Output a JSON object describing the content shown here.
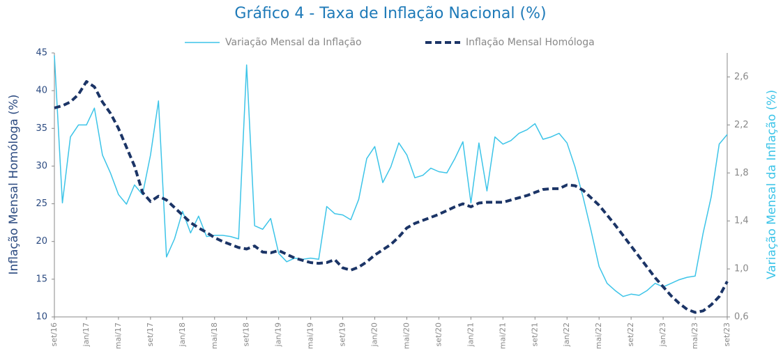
{
  "chart_data": {
    "type": "line",
    "title": "Gráfico 4 - Taxa de Inflação Nacional (%)",
    "ylabel": "Inflação Mensal Homóloga (%)",
    "y2label": "Variação Mensal da Inflação (%)",
    "categories": [
      "set/16",
      null,
      null,
      null,
      "jan/17",
      null,
      null,
      null,
      "mai/17",
      null,
      null,
      null,
      "set/17",
      null,
      null,
      null,
      "jan/18",
      null,
      null,
      null,
      "mai/18",
      null,
      null,
      null,
      "set/18",
      null,
      null,
      null,
      "jan/19",
      null,
      null,
      null,
      "mai/19",
      null,
      null,
      null,
      "set/19",
      null,
      null,
      null,
      "jan/20",
      null,
      null,
      null,
      "mai/20",
      null,
      null,
      null,
      "set/20",
      null,
      null,
      null,
      "jan/21",
      null,
      null,
      null,
      "mai/21",
      null,
      null,
      null,
      "set/21",
      null,
      null,
      null,
      "jan/22",
      null,
      null,
      null,
      "mai/22",
      null,
      null,
      null,
      "set/22",
      null,
      null,
      null,
      "jan/23",
      null,
      null,
      null,
      "mai/23",
      null,
      null,
      null,
      "set/23"
    ],
    "series": [
      {
        "name": "Variação Mensal da Inflação",
        "color": "#3cc4e8",
        "axis": "y2",
        "dashed": false,
        "values": [
          2.78,
          1.55,
          2.1,
          2.2,
          2.2,
          2.34,
          1.95,
          1.8,
          1.62,
          1.54,
          1.7,
          1.62,
          1.95,
          2.4,
          1.1,
          1.25,
          1.48,
          1.3,
          1.44,
          1.27,
          1.28,
          1.28,
          1.27,
          1.25,
          2.7,
          1.36,
          1.33,
          1.42,
          1.13,
          1.06,
          1.09,
          1.08,
          1.09,
          1.08,
          1.52,
          1.46,
          1.45,
          1.41,
          1.58,
          1.92,
          2.02,
          1.72,
          1.85,
          2.05,
          1.95,
          1.76,
          1.78,
          1.84,
          1.81,
          1.8,
          1.92,
          2.06,
          1.55,
          2.05,
          1.65,
          2.1,
          2.04,
          2.07,
          2.13,
          2.16,
          2.21,
          2.08,
          2.1,
          2.13,
          2.05,
          1.85,
          1.6,
          1.32,
          1.02,
          0.88,
          0.82,
          0.77,
          0.79,
          0.78,
          0.82,
          0.88,
          0.85,
          0.88,
          0.91,
          0.93,
          0.94,
          1.3,
          1.6,
          2.04,
          2.12
        ]
      },
      {
        "name": "Inflação Mensal Homóloga",
        "color": "#1b3466",
        "axis": "y",
        "dashed": true,
        "values": [
          37.7,
          38.0,
          38.5,
          39.5,
          41.2,
          40.5,
          38.5,
          37.0,
          35.0,
          32.5,
          30.0,
          26.5,
          25.3,
          26.0,
          25.5,
          24.5,
          23.5,
          22.5,
          21.8,
          21.2,
          20.5,
          20.0,
          19.6,
          19.2,
          19.0,
          19.4,
          18.6,
          18.5,
          18.8,
          18.3,
          17.8,
          17.5,
          17.2,
          17.1,
          17.2,
          17.6,
          16.5,
          16.2,
          16.6,
          17.3,
          18.2,
          18.9,
          19.6,
          20.6,
          21.8,
          22.4,
          22.8,
          23.2,
          23.6,
          24.1,
          24.6,
          25.0,
          24.6,
          25.1,
          25.2,
          25.2,
          25.2,
          25.5,
          25.8,
          26.1,
          26.5,
          26.9,
          27.0,
          27.0,
          27.5,
          27.4,
          26.8,
          25.8,
          24.8,
          23.5,
          22.2,
          20.8,
          19.4,
          18.0,
          16.6,
          15.2,
          14.0,
          12.8,
          11.8,
          11.0,
          10.6,
          10.8,
          11.6,
          12.7,
          14.7
        ]
      }
    ],
    "ylim": [
      10,
      45
    ],
    "yticks": [
      10,
      15,
      20,
      25,
      30,
      35,
      40,
      45
    ],
    "y2lim": [
      0.6,
      2.8
    ],
    "y2ticks": [
      {
        "value": 0.6,
        "label": "0,6"
      },
      {
        "value": 1.0,
        "label": "1,0"
      },
      {
        "value": 1.4,
        "label": "1,4"
      },
      {
        "value": 1.8,
        "label": "1,8"
      },
      {
        "value": 2.2,
        "label": "2,2"
      },
      {
        "value": 2.6,
        "label": "2,6"
      }
    ],
    "grid": false,
    "legend": "top"
  }
}
